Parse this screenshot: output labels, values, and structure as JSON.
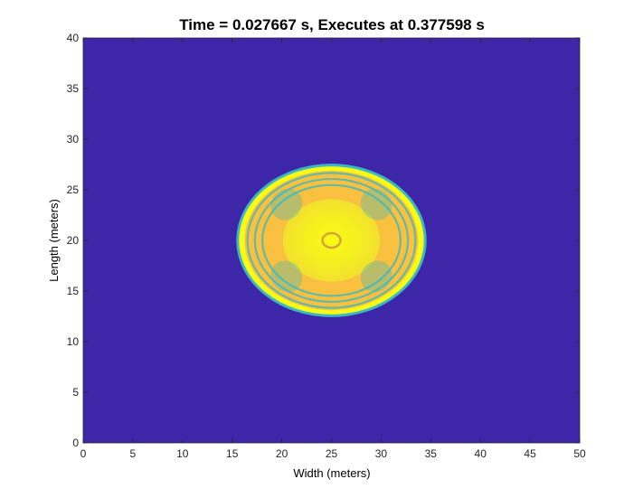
{
  "chart_data": {
    "type": "heatmap",
    "title": "Time = 0.027667 s, Executes at 0.377598 s",
    "xlabel": "Width (meters)",
    "ylabel": "Length (meters)",
    "xlim": [
      0,
      50
    ],
    "ylim": [
      0,
      40
    ],
    "xticks": [
      "0",
      "5",
      "10",
      "15",
      "20",
      "25",
      "30",
      "35",
      "40",
      "45",
      "50"
    ],
    "yticks": [
      "0",
      "5",
      "10",
      "15",
      "20",
      "25",
      "30",
      "35",
      "40"
    ],
    "grid": false,
    "colormap": "parula",
    "colors": {
      "background_field": "#3e26a8",
      "outer_ring": "#3db7c4",
      "bright_yellow": "#f9fb15",
      "orange_yellow": "#fac040",
      "cyan_band": "#3cb8c1"
    },
    "feature": {
      "shape": "ellipse",
      "center": [
        25,
        20
      ],
      "radius_x": 9.4,
      "radius_y": 7.4
    }
  }
}
